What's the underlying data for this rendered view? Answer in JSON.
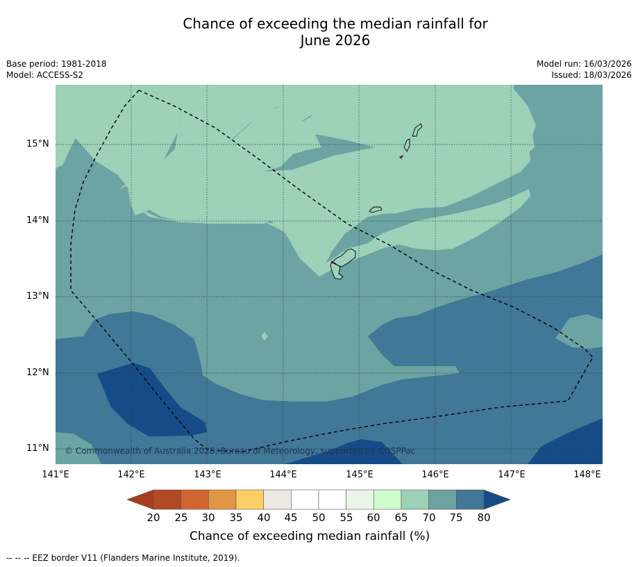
{
  "title_line1": "Chance of exceeding the median rainfall for",
  "title_line2": "June 2026",
  "meta_left": [
    "Base period: 1981-2018",
    "Model: ACCESS-S2"
  ],
  "meta_right": [
    "Model run: 16/03/2026",
    "Issued: 18/03/2026"
  ],
  "lat_labels": [
    "15°N",
    "14°N",
    "13°N",
    "12°N",
    "11°N"
  ],
  "lon_labels": [
    "141°E",
    "142°E",
    "143°E",
    "144°E",
    "145°E",
    "146°E",
    "147°E",
    "148°E"
  ],
  "colorbar": {
    "ticks": [
      "20",
      "25",
      "30",
      "35",
      "40",
      "45",
      "50",
      "55",
      "60",
      "65",
      "70",
      "75",
      "80"
    ],
    "colors": [
      "#b34a26",
      "#d0652f",
      "#e39546",
      "#fdce65",
      "#ede8e2",
      "#ffffff",
      "#ffffff",
      "#e9f5e9",
      "#ccffcc",
      "#9dd1b8",
      "#6ca3a3",
      "#417797"
    ],
    "under_color": "#a63d1d",
    "over_color": "#154c88",
    "label": "Chance of exceeding median rainfall (%)"
  },
  "legend_footnote": "--  --  -- EEZ border V11 (Flanders Marine Institute, 2019).",
  "copyright": "© Commonwealth of Australia 2026, Bureau of Meteorology, supported by COSPPac"
}
